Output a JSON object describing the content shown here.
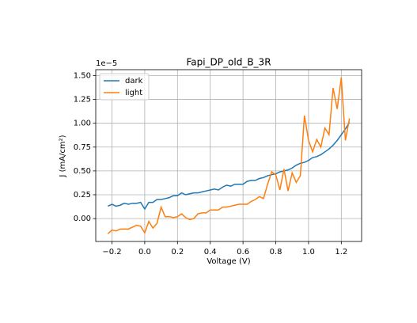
{
  "chart_data": {
    "type": "line",
    "title": "Fapi_DP_old_B_3R",
    "x_label": "Voltage (V)",
    "y_label": "J (mA/cm²)",
    "y_offset_label": "1e−5",
    "x": [
      -0.225,
      -0.2,
      -0.175,
      -0.15,
      -0.125,
      -0.1,
      -0.075,
      -0.05,
      -0.025,
      0,
      0.025,
      0.05,
      0.075,
      0.1,
      0.125,
      0.15,
      0.175,
      0.2,
      0.225,
      0.25,
      0.275,
      0.3,
      0.325,
      0.35,
      0.375,
      0.4,
      0.425,
      0.45,
      0.475,
      0.5,
      0.525,
      0.55,
      0.575,
      0.6,
      0.625,
      0.65,
      0.675,
      0.7,
      0.725,
      0.75,
      0.775,
      0.8,
      0.825,
      0.85,
      0.875,
      0.9,
      0.925,
      0.95,
      0.975,
      1,
      1.025,
      1.05,
      1.075,
      1.1,
      1.125,
      1.15,
      1.175,
      1.2,
      1.225,
      1.25
    ],
    "series": [
      {
        "name": "dark",
        "color": "#1f77b4",
        "values": [
          0.13,
          0.15,
          0.13,
          0.14,
          0.16,
          0.15,
          0.16,
          0.16,
          0.17,
          0.1,
          0.17,
          0.17,
          0.2,
          0.2,
          0.21,
          0.22,
          0.24,
          0.24,
          0.27,
          0.25,
          0.26,
          0.27,
          0.27,
          0.28,
          0.29,
          0.3,
          0.31,
          0.3,
          0.33,
          0.35,
          0.34,
          0.36,
          0.36,
          0.36,
          0.39,
          0.4,
          0.4,
          0.42,
          0.43,
          0.45,
          0.46,
          0.47,
          0.49,
          0.5,
          0.51,
          0.53,
          0.56,
          0.58,
          0.59,
          0.61,
          0.64,
          0.65,
          0.67,
          0.7,
          0.73,
          0.77,
          0.82,
          0.88,
          0.94,
          1.01
        ]
      },
      {
        "name": "light",
        "color": "#ff7f0e",
        "values": [
          -0.16,
          -0.12,
          -0.13,
          -0.11,
          -0.11,
          -0.11,
          -0.09,
          -0.07,
          -0.08,
          -0.15,
          -0.03,
          -0.1,
          -0.05,
          0.12,
          0.02,
          0.02,
          0.01,
          0.02,
          0.05,
          0.01,
          -0.01,
          0.0,
          0.05,
          0.06,
          0.06,
          0.09,
          0.09,
          0.09,
          0.12,
          0.12,
          0.13,
          0.14,
          0.15,
          0.15,
          0.15,
          0.18,
          0.2,
          0.23,
          0.21,
          0.36,
          0.49,
          0.46,
          0.3,
          0.52,
          0.29,
          0.48,
          0.38,
          0.45,
          1.08,
          0.82,
          0.7,
          0.83,
          0.75,
          0.95,
          0.88,
          1.37,
          1.15,
          1.48,
          0.82,
          1.05
        ]
      }
    ],
    "xlim": [
      -0.299,
      1.324
    ],
    "ylim": [
      -0.24,
      1.562
    ],
    "xticks": [
      {
        "value": -0.2,
        "label": "−0.2"
      },
      {
        "value": 0,
        "label": "0.0"
      },
      0.2,
      0.4,
      0.6,
      0.8,
      {
        "value": 1,
        "label": "1.0"
      },
      1.2
    ],
    "yticks": [
      {
        "value": 0,
        "label": "0.00"
      },
      0.25,
      {
        "value": 0.5,
        "label": "0.50"
      },
      0.75,
      {
        "value": 1,
        "label": "1.00"
      },
      1.25,
      {
        "value": 1.5,
        "label": "1.50"
      }
    ],
    "grid": true,
    "legend": "upper left"
  }
}
